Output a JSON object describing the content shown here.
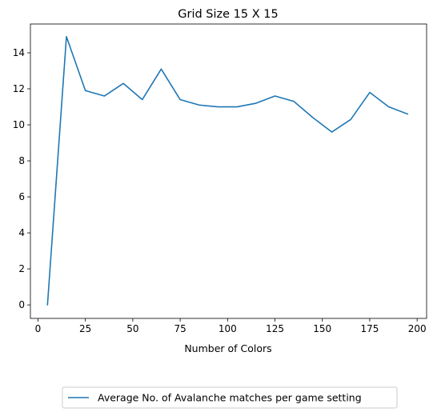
{
  "chart_data": {
    "type": "line",
    "title": "Grid Size 15 X 15",
    "xlabel": "Number of Colors",
    "ylabel": "",
    "xlim": [
      -4,
      205
    ],
    "ylim": [
      -0.75,
      15.6
    ],
    "xticks": [
      0,
      25,
      50,
      75,
      100,
      125,
      150,
      175,
      200
    ],
    "yticks": [
      0,
      2,
      4,
      6,
      8,
      10,
      12,
      14
    ],
    "grid": false,
    "legend_position": "bottom-center",
    "series": [
      {
        "name": "Average No. of Avalanche matches per game setting",
        "color": "#1f77b4",
        "x": [
          5,
          15,
          25,
          35,
          45,
          55,
          65,
          75,
          85,
          95,
          105,
          115,
          125,
          135,
          145,
          155,
          165,
          175,
          185,
          195
        ],
        "y": [
          0,
          14.9,
          11.9,
          11.6,
          12.3,
          11.4,
          13.1,
          11.4,
          11.1,
          11.0,
          11.0,
          11.2,
          11.6,
          11.3,
          10.4,
          9.6,
          10.3,
          11.8,
          11.0,
          10.6
        ]
      }
    ]
  }
}
